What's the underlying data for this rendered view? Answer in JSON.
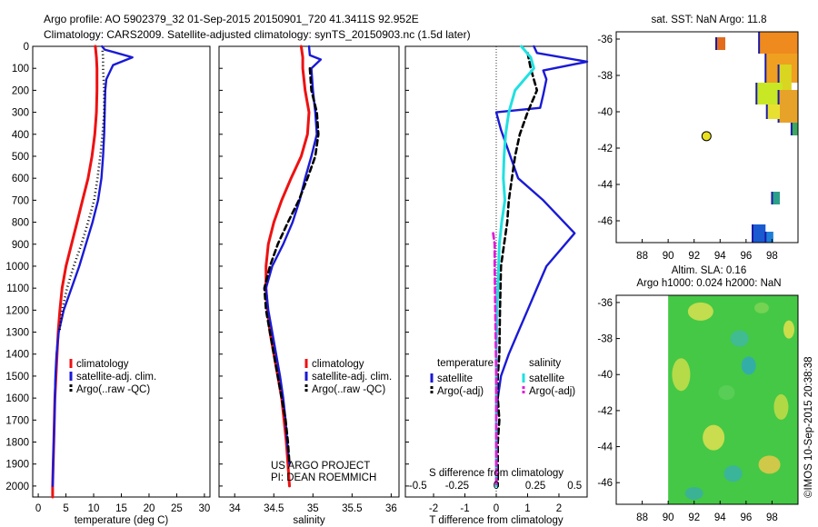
{
  "header": {
    "title_line1": "Argo profile: AO 5902379_32 01-Sep-2015 20150901_720 41.3411S 92.952E",
    "title_line2": "Climatology: CARS2009. Satellite-adjusted climatology: synTS_20150903.nc (1.5d later)"
  },
  "side_stamp": "©IMOS 10-Sep-2015 20:38:38",
  "credits": [
    "US ARGO PROJECT",
    "PI: DEAN ROEMMICH"
  ],
  "colors": {
    "climatology": "#ee1111",
    "satellite": "#1a1ad6",
    "argo": "#000000",
    "salinity_satellite": "#22e0e0",
    "salinity_argo": "#e020d8"
  },
  "chart_data": [
    {
      "type": "line",
      "xlabel": "temperature (deg C)",
      "ylabel": "",
      "xlim": [
        -1,
        31
      ],
      "ylim": [
        2050,
        0
      ],
      "xticks": [
        "0",
        "5",
        "10",
        "15",
        "20",
        "25",
        "30"
      ],
      "yticks": [
        "0",
        "100",
        "200",
        "300",
        "400",
        "500",
        "600",
        "700",
        "800",
        "900",
        "1000",
        "1100",
        "1200",
        "1300",
        "1400",
        "1500",
        "1600",
        "1700",
        "1800",
        "1900",
        "2000"
      ],
      "legend": [
        "climatology",
        "satellite-adj. clim.",
        "Argo(..raw -QC)"
      ],
      "series": [
        {
          "name": "climatology",
          "style": "solid",
          "x": [
            10.3,
            10.5,
            10.6,
            10.6,
            10.5,
            10.2,
            9.7,
            9.0,
            8.0,
            7.0,
            6.0,
            5.0,
            4.3,
            3.9,
            3.6,
            3.4,
            3.2,
            3.0,
            2.9,
            2.8,
            2.7,
            2.6,
            2.6
          ],
          "y": [
            0,
            50,
            100,
            200,
            300,
            400,
            500,
            600,
            700,
            800,
            900,
            1000,
            1100,
            1200,
            1300,
            1400,
            1500,
            1600,
            1700,
            1800,
            1900,
            2000,
            2050
          ]
        },
        {
          "name": "satellite-adj. clim.",
          "style": "solid",
          "x": [
            11.5,
            12.0,
            17.0,
            13.5,
            12.3,
            12.1,
            12.0,
            11.9,
            11.7,
            11.4,
            10.8,
            9.8,
            8.6,
            7.4,
            6.0,
            4.6,
            3.7,
            3.3,
            3.1,
            3.0,
            2.9,
            2.8,
            2.7,
            2.6
          ],
          "y": [
            0,
            15,
            50,
            85,
            150,
            200,
            300,
            400,
            500,
            600,
            700,
            800,
            900,
            1000,
            1100,
            1200,
            1300,
            1400,
            1500,
            1600,
            1700,
            1800,
            1900,
            2000
          ]
        },
        {
          "name": "Argo(..raw -QC)",
          "style": "dotted",
          "x": [
            11.6,
            11.7,
            11.7,
            11.9,
            11.9,
            11.6,
            11.2,
            10.7,
            10.1,
            9.0,
            7.8,
            6.4,
            5.2,
            4.3,
            3.8
          ],
          "y": [
            20,
            50,
            100,
            200,
            300,
            400,
            500,
            600,
            700,
            800,
            900,
            1000,
            1100,
            1200,
            1300
          ]
        }
      ]
    },
    {
      "type": "line",
      "xlabel": "salinity",
      "ylabel": "",
      "xlim": [
        33.8,
        36.1
      ],
      "ylim": [
        2050,
        0
      ],
      "xticks": [
        "34",
        "34.5",
        "35",
        "35.5",
        "36"
      ],
      "legend": [
        "climatology",
        "satellite-adj. clim.",
        "Argo(..raw -QC)"
      ],
      "series": [
        {
          "name": "climatology",
          "style": "solid",
          "x": [
            34.85,
            34.87,
            34.87,
            34.9,
            34.95,
            34.93,
            34.85,
            34.72,
            34.6,
            34.5,
            34.43,
            34.4,
            34.4,
            34.42,
            34.45,
            34.5,
            34.55,
            34.6,
            34.63,
            34.66,
            34.68,
            34.7
          ],
          "y": [
            0,
            50,
            100,
            200,
            300,
            400,
            500,
            600,
            700,
            800,
            900,
            1000,
            1100,
            1200,
            1300,
            1400,
            1500,
            1600,
            1700,
            1800,
            1900,
            2000
          ]
        },
        {
          "name": "satellite-adj. clim.",
          "style": "solid",
          "x": [
            34.95,
            34.96,
            35.1,
            34.98,
            35.0,
            35.03,
            35.05,
            34.98,
            34.9,
            34.83,
            34.74,
            34.62,
            34.48,
            34.4,
            34.43,
            34.48,
            34.53,
            34.58,
            34.62,
            34.65,
            34.67,
            34.7
          ],
          "y": [
            0,
            40,
            60,
            100,
            200,
            300,
            400,
            500,
            600,
            700,
            800,
            900,
            1000,
            1100,
            1200,
            1300,
            1400,
            1500,
            1600,
            1700,
            1800,
            1900
          ]
        },
        {
          "name": "Argo(..raw -QC)",
          "style": "dashed",
          "x": [
            34.96,
            34.98,
            35.05,
            35.07,
            35.03,
            34.93,
            34.82,
            34.68,
            34.55,
            34.45,
            34.38,
            34.4,
            34.45,
            34.5,
            34.55,
            34.6,
            34.65,
            34.68,
            34.7
          ],
          "y": [
            100,
            200,
            300,
            400,
            500,
            600,
            700,
            800,
            900,
            1000,
            1100,
            1200,
            1300,
            1400,
            1500,
            1600,
            1700,
            1800,
            1900
          ]
        }
      ]
    },
    {
      "type": "line",
      "xlabel": "T difference from climatology",
      "xlabel_top": "S difference from climatology",
      "ylabel": "",
      "xlim": [
        -2.9,
        2.9
      ],
      "ylim": [
        2050,
        0
      ],
      "xticks": [
        "-2",
        "-1",
        "0",
        "1",
        "2"
      ],
      "xticks_top": [
        "-0.5",
        "-0.25",
        "0",
        "0.25",
        "0.5"
      ],
      "legend_groups": [
        {
          "title": "temperature",
          "entries": [
            "satellite",
            "Argo(-adj)"
          ]
        },
        {
          "title": "salinity",
          "entries": [
            "satellite",
            "Argo(-adj)"
          ]
        }
      ],
      "series": [
        {
          "name": "temperature satellite",
          "style": "solid",
          "x": [
            1.2,
            1.3,
            2.9,
            1.5,
            1.6,
            1.5,
            1.4,
            0.0,
            0.15,
            0.7,
            1.5,
            2.5,
            1.6,
            1.3,
            1.0,
            0.7,
            0.4,
            0.15,
            0.05,
            0.0,
            0.0,
            0.0
          ],
          "y": [
            0,
            30,
            70,
            110,
            150,
            220,
            280,
            300,
            380,
            600,
            700,
            850,
            1000,
            1100,
            1200,
            1300,
            1400,
            1500,
            1600,
            1700,
            1800,
            2000
          ]
        },
        {
          "name": "temperature Argo(-adj)",
          "style": "dashed",
          "x": [
            1.0,
            1.1,
            1.3,
            1.0,
            0.75,
            0.6,
            0.5,
            0.4,
            0.35,
            0.25,
            0.15,
            0.12,
            0.1,
            0.05,
            0.05,
            0.1,
            0.05,
            0.05
          ],
          "y": [
            30,
            100,
            200,
            300,
            400,
            500,
            600,
            700,
            800,
            900,
            1000,
            1200,
            1400,
            1500,
            1600,
            1700,
            1800,
            2000
          ]
        },
        {
          "name": "salinity satellite",
          "style": "solid",
          "x": [
            0.16,
            0.22,
            0.24,
            0.12,
            0.08,
            0.06,
            0.05,
            0.045,
            0.055,
            0.035,
            0.02,
            0.015,
            0.01,
            0.005,
            0.0,
            0.0,
            0.0,
            0.0,
            0.0
          ],
          "y": [
            0,
            50,
            100,
            200,
            300,
            400,
            500,
            600,
            700,
            800,
            900,
            1000,
            1100,
            1200,
            1400,
            1600,
            1800,
            1900,
            2000
          ]
        },
        {
          "name": "salinity Argo(-adj)",
          "style": "dashed",
          "x": [
            -0.02,
            -0.01,
            -0.01,
            0.0,
            0.0,
            0.0
          ],
          "y": [
            850,
            900,
            1000,
            1500,
            1800,
            2000
          ]
        }
      ]
    },
    {
      "type": "heatmap",
      "title": "sat. SST: NaN Argo: 11.8",
      "xlim": [
        86,
        100
      ],
      "ylim": [
        -47.2,
        -35.6
      ],
      "xticks": [
        "88",
        "90",
        "92",
        "94",
        "96",
        "98"
      ],
      "yticks": [
        "-36",
        "-38",
        "-40",
        "-42",
        "-44",
        "-46"
      ],
      "marker": {
        "lon": 92.952,
        "lat": -41.3411
      },
      "cells": [
        {
          "x0": 97.0,
          "y0": -36.8,
          "x1": 100.0,
          "y1": -35.6,
          "color": "#ee8a1e"
        },
        {
          "x0": 97.5,
          "y0": -38.4,
          "x1": 100.0,
          "y1": -36.8,
          "color": "#f0a020"
        },
        {
          "x0": 98.5,
          "y0": -38.8,
          "x1": 99.5,
          "y1": -37.4,
          "color": "#d9d520"
        },
        {
          "x0": 96.8,
          "y0": -39.6,
          "x1": 98.8,
          "y1": -38.4,
          "color": "#c8e825"
        },
        {
          "x0": 98.5,
          "y0": -40.6,
          "x1": 100.0,
          "y1": -38.8,
          "color": "#e7a22a"
        },
        {
          "x0": 97.6,
          "y0": -40.4,
          "x1": 98.6,
          "y1": -39.6,
          "color": "#e8e030"
        },
        {
          "x0": 93.7,
          "y0": -36.6,
          "x1": 94.4,
          "y1": -35.9,
          "color": "#e36b1c"
        },
        {
          "x0": 99.5,
          "y0": -41.3,
          "x1": 100.0,
          "y1": -40.6,
          "color": "#3aa860"
        },
        {
          "x0": 98.0,
          "y0": -45.1,
          "x1": 98.6,
          "y1": -44.4,
          "color": "#2aa08a"
        },
        {
          "x0": 96.5,
          "y0": -47.2,
          "x1": 97.5,
          "y1": -46.2,
          "color": "#1a5ad0"
        },
        {
          "x0": 97.5,
          "y0": -47.2,
          "x1": 98.1,
          "y1": -46.6,
          "color": "#1f7fd6"
        }
      ]
    },
    {
      "type": "heatmap",
      "title": "Altim. SLA: 0.16",
      "subtitle": "Argo h1000: 0.024 h2000: NaN",
      "xlim": [
        86,
        100
      ],
      "ylim": [
        -47.2,
        -35.6
      ],
      "xticks": [
        "88",
        "90",
        "92",
        "94",
        "96",
        "98"
      ],
      "yticks": [
        "-36",
        "-38",
        "-40",
        "-42",
        "-44",
        "-46"
      ],
      "field_xrange": [
        90,
        100
      ],
      "base_color": "#45c846"
    }
  ]
}
